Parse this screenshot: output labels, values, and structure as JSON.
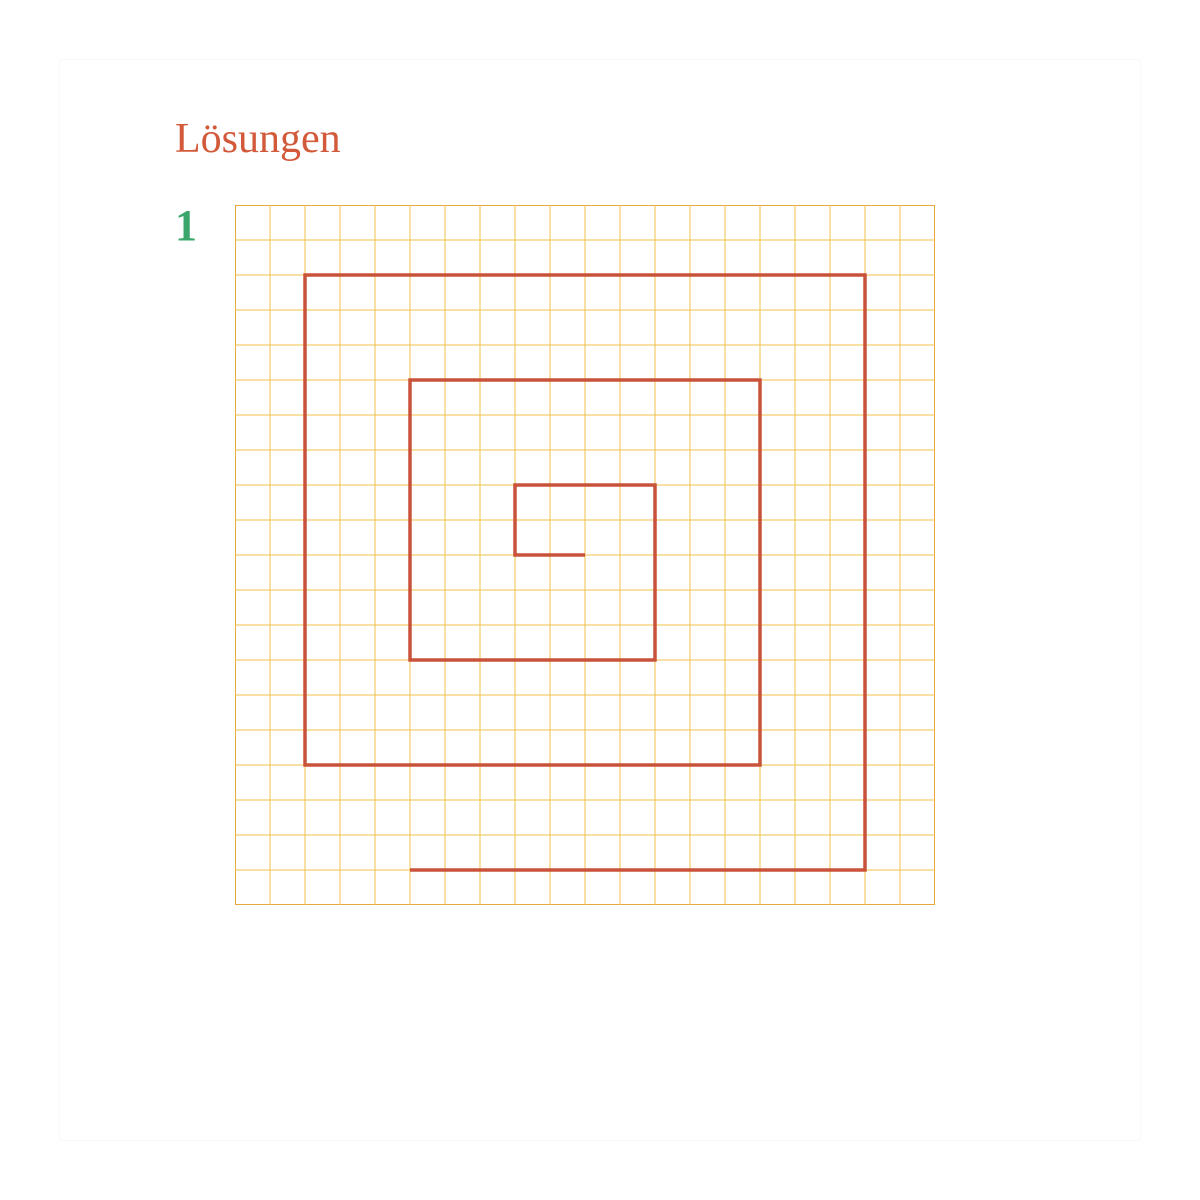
{
  "page": {
    "title": "Lösungen",
    "title_color": "#d25a3a",
    "number": "1",
    "number_color": "#3aa66b",
    "background_color": "#ffffff"
  },
  "diagram": {
    "type": "grid-with-path",
    "grid": {
      "cols": 20,
      "rows": 20,
      "cell_size": 35,
      "line_color": "#f0c14b",
      "line_width": 1,
      "border_color": "#e8a93c",
      "border_width": 2
    },
    "path": {
      "stroke_color": "#c9523a",
      "stroke_width": 3.5,
      "points_grid": [
        [
          5,
          19
        ],
        [
          18,
          19
        ],
        [
          18,
          2
        ],
        [
          2,
          2
        ],
        [
          2,
          16
        ],
        [
          15,
          16
        ],
        [
          15,
          5
        ],
        [
          5,
          5
        ],
        [
          5,
          13
        ],
        [
          12,
          13
        ],
        [
          12,
          8
        ],
        [
          8,
          8
        ],
        [
          8,
          10
        ],
        [
          10,
          10
        ]
      ]
    }
  }
}
